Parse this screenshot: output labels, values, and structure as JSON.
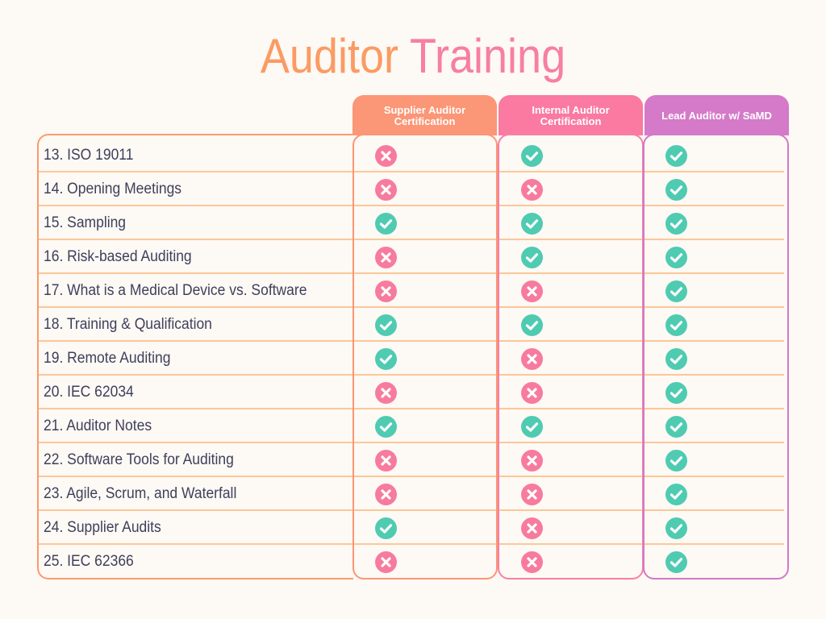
{
  "title": {
    "word1": "Auditor",
    "word2": "Training"
  },
  "columns": [
    {
      "label": "Supplier Auditor Certification",
      "color": "#fb9676"
    },
    {
      "label": "Internal Auditor Certification",
      "color": "#fa7aa1"
    },
    {
      "label": "Lead Auditor w/ SaMD",
      "color": "#d47ac8"
    }
  ],
  "colors": {
    "check": "#4fcbb1",
    "cross": "#f77b9e",
    "text": "#3e3f5c",
    "divider": "#fcc79a",
    "background": "#fdf9f4"
  },
  "rows": [
    {
      "label": "13. ISO 19011",
      "marks": [
        "cross",
        "check",
        "check"
      ]
    },
    {
      "label": "14. Opening Meetings",
      "marks": [
        "cross",
        "cross",
        "check"
      ]
    },
    {
      "label": "15. Sampling",
      "marks": [
        "check",
        "check",
        "check"
      ]
    },
    {
      "label": "16. Risk-based Auditing",
      "marks": [
        "cross",
        "check",
        "check"
      ]
    },
    {
      "label": "17. What is a Medical Device vs. Software",
      "marks": [
        "cross",
        "cross",
        "check"
      ]
    },
    {
      "label": "18. Training & Qualification",
      "marks": [
        "check",
        "check",
        "check"
      ]
    },
    {
      "label": "19. Remote Auditing",
      "marks": [
        "check",
        "cross",
        "check"
      ]
    },
    {
      "label": "20. IEC 62034",
      "marks": [
        "cross",
        "cross",
        "check"
      ]
    },
    {
      "label": "21. Auditor Notes",
      "marks": [
        "check",
        "check",
        "check"
      ]
    },
    {
      "label": "22. Software Tools for Auditing",
      "marks": [
        "cross",
        "cross",
        "check"
      ]
    },
    {
      "label": "23. Agile, Scrum, and Waterfall",
      "marks": [
        "cross",
        "cross",
        "check"
      ]
    },
    {
      "label": "24. Supplier Audits",
      "marks": [
        "check",
        "cross",
        "check"
      ]
    },
    {
      "label": "25. IEC 62366",
      "marks": [
        "cross",
        "cross",
        "check"
      ]
    }
  ]
}
